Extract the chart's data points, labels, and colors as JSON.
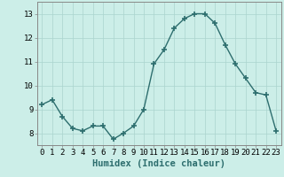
{
  "x": [
    0,
    1,
    2,
    3,
    4,
    5,
    6,
    7,
    8,
    9,
    10,
    11,
    12,
    13,
    14,
    15,
    16,
    17,
    18,
    19,
    20,
    21,
    22,
    23
  ],
  "y": [
    9.2,
    9.4,
    8.7,
    8.2,
    8.1,
    8.3,
    8.3,
    7.75,
    8.0,
    8.3,
    9.0,
    10.9,
    11.5,
    12.4,
    12.8,
    13.0,
    13.0,
    12.6,
    11.7,
    10.9,
    10.3,
    9.7,
    9.6,
    8.1
  ],
  "line_color": "#2d6e6e",
  "marker": "+",
  "marker_size": 4,
  "bg_color": "#cceee8",
  "grid_color": "#aad4ce",
  "xlabel": "Humidex (Indice chaleur)",
  "xlim": [
    -0.5,
    23.5
  ],
  "ylim": [
    7.5,
    13.5
  ],
  "yticks": [
    8,
    9,
    10,
    11,
    12,
    13
  ],
  "xticks": [
    0,
    1,
    2,
    3,
    4,
    5,
    6,
    7,
    8,
    9,
    10,
    11,
    12,
    13,
    14,
    15,
    16,
    17,
    18,
    19,
    20,
    21,
    22,
    23
  ],
  "tick_fontsize": 6.5,
  "xlabel_fontsize": 7.5,
  "linewidth": 1.0
}
